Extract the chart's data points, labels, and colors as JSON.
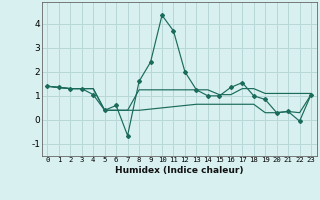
{
  "xlabel": "Humidex (Indice chaleur)",
  "background_color": "#d8f0f0",
  "grid_color": "#b8d8d8",
  "line_color": "#1a6b5a",
  "xlim": [
    -0.5,
    23.5
  ],
  "ylim": [
    -1.5,
    4.9
  ],
  "ytick_values": [
    -1,
    0,
    1,
    2,
    3,
    4
  ],
  "series": [
    [
      1.4,
      1.35,
      1.3,
      1.3,
      1.3,
      0.4,
      0.4,
      0.4,
      1.25,
      1.25,
      1.25,
      1.25,
      1.25,
      1.25,
      1.25,
      1.05,
      1.05,
      1.3,
      1.3,
      1.1,
      1.1,
      1.1,
      1.1,
      1.1
    ],
    [
      1.4,
      1.35,
      1.3,
      1.3,
      1.3,
      0.4,
      0.4,
      0.4,
      0.4,
      0.45,
      0.5,
      0.55,
      0.6,
      0.65,
      0.65,
      0.65,
      0.65,
      0.65,
      0.65,
      0.3,
      0.3,
      0.35,
      0.3,
      1.05
    ],
    [
      1.4,
      1.35,
      1.3,
      1.3,
      1.05,
      0.4,
      0.6,
      -0.65,
      1.6,
      2.4,
      4.35,
      3.7,
      2.0,
      1.25,
      1.0,
      1.0,
      1.35,
      1.55,
      1.0,
      0.85,
      0.3,
      0.35,
      -0.05,
      1.05
    ]
  ]
}
